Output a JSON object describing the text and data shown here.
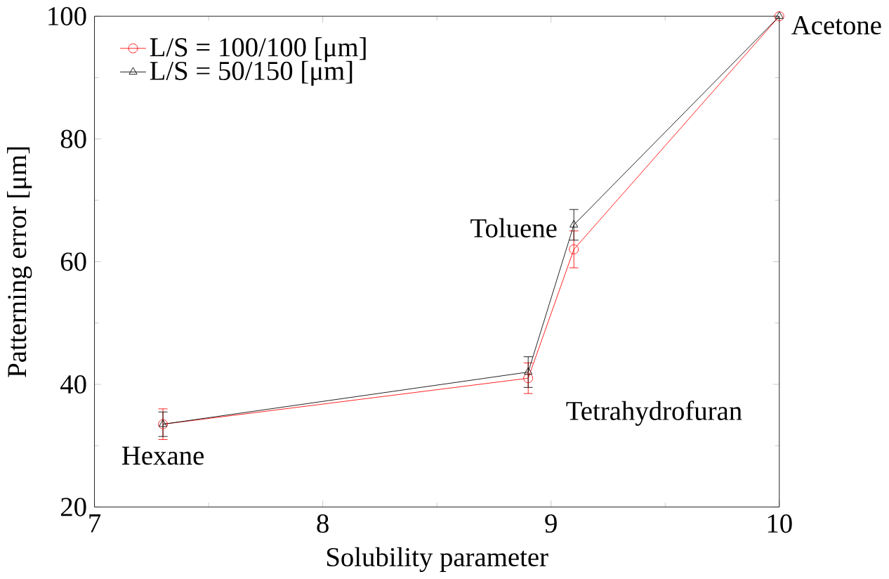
{
  "chart_data": {
    "type": "line",
    "xlabel": "Solubility parameter",
    "ylabel": "Patterning error [μm]",
    "x": [
      7.3,
      8.9,
      9.1,
      10
    ],
    "series": [
      {
        "name": "L/S = 100/100 [μm]",
        "color": "#ff0000",
        "marker": "circle",
        "values": [
          33.5,
          41,
          62,
          100
        ],
        "errors": [
          2.5,
          2.5,
          3,
          null
        ]
      },
      {
        "name": "L/S = 50/150 [μm]",
        "color": "#000000",
        "marker": "triangle",
        "values": [
          33.5,
          42,
          66,
          100
        ],
        "errors": [
          2,
          2.5,
          2.5,
          null
        ]
      }
    ],
    "xlim": [
      7,
      10
    ],
    "ylim": [
      20,
      100
    ],
    "xticks": [
      7,
      8,
      9,
      10
    ],
    "yticks": [
      20,
      40,
      60,
      80,
      100
    ],
    "legend": "top left",
    "line_style": "solid",
    "annotations": [
      {
        "text": "Hexane",
        "x": 7.3,
        "y": 33.5
      },
      {
        "text": "Tetrahydrofuran",
        "x": 8.9,
        "y": 41
      },
      {
        "text": "Toluene",
        "x": 9.1,
        "y": 66
      },
      {
        "text": "Acetone",
        "x": 10,
        "y": 100
      }
    ]
  }
}
